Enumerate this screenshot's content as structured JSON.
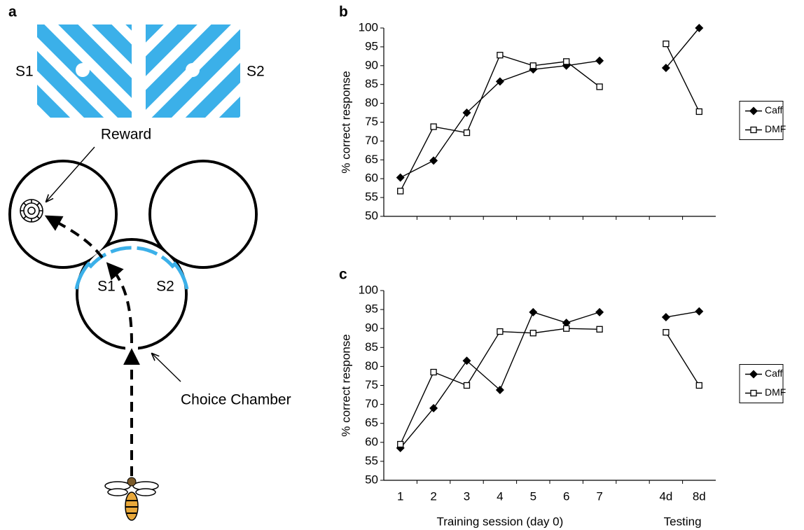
{
  "diagram": {
    "panel": "a",
    "stimulus_labels": [
      "S1",
      "S2"
    ],
    "reward": "Reward",
    "entrance_labels": [
      "S1",
      "S2"
    ],
    "choice_chamber": "Choice Chamber"
  },
  "chart_data": [
    {
      "type": "line",
      "panel": "b",
      "ylabel": "% correct response",
      "ylim": [
        50,
        100
      ],
      "yticks": [
        50,
        55,
        60,
        65,
        70,
        75,
        80,
        85,
        90,
        95,
        100
      ],
      "legend": "right",
      "series": [
        {
          "name": "Caff",
          "color": "#000000",
          "marker": "diamond",
          "values": [
            60.3,
            64.8,
            77.5,
            85.8,
            89,
            90,
            91.3,
            null,
            89.4,
            100
          ]
        },
        {
          "name": "DMF",
          "color": "#000000",
          "marker": "square",
          "values": [
            56.7,
            73.8,
            72.2,
            92.8,
            90,
            91.1,
            84.4,
            null,
            95.8,
            77.8
          ]
        }
      ]
    },
    {
      "type": "line",
      "panel": "c",
      "ylabel": "% correct response",
      "ylim": [
        50,
        100
      ],
      "yticks": [
        50,
        55,
        60,
        65,
        70,
        75,
        80,
        85,
        90,
        95,
        100
      ],
      "legend": "right",
      "categories": [
        "1",
        "2",
        "3",
        "4",
        "5",
        "6",
        "7",
        null,
        "4d",
        "8d"
      ],
      "xlabels": [
        "Training session (day 0)",
        "Testing"
      ],
      "series": [
        {
          "name": "Caff",
          "color": "#000000",
          "marker": "diamond",
          "values": [
            58.5,
            69,
            81.5,
            73.8,
            94.3,
            91.5,
            94.3,
            null,
            93,
            94.5
          ]
        },
        {
          "name": "DMF",
          "color": "#000000",
          "marker": "square",
          "values": [
            59.5,
            78.5,
            75,
            89.2,
            88.8,
            90,
            89.8,
            null,
            89,
            75
          ]
        }
      ]
    }
  ]
}
